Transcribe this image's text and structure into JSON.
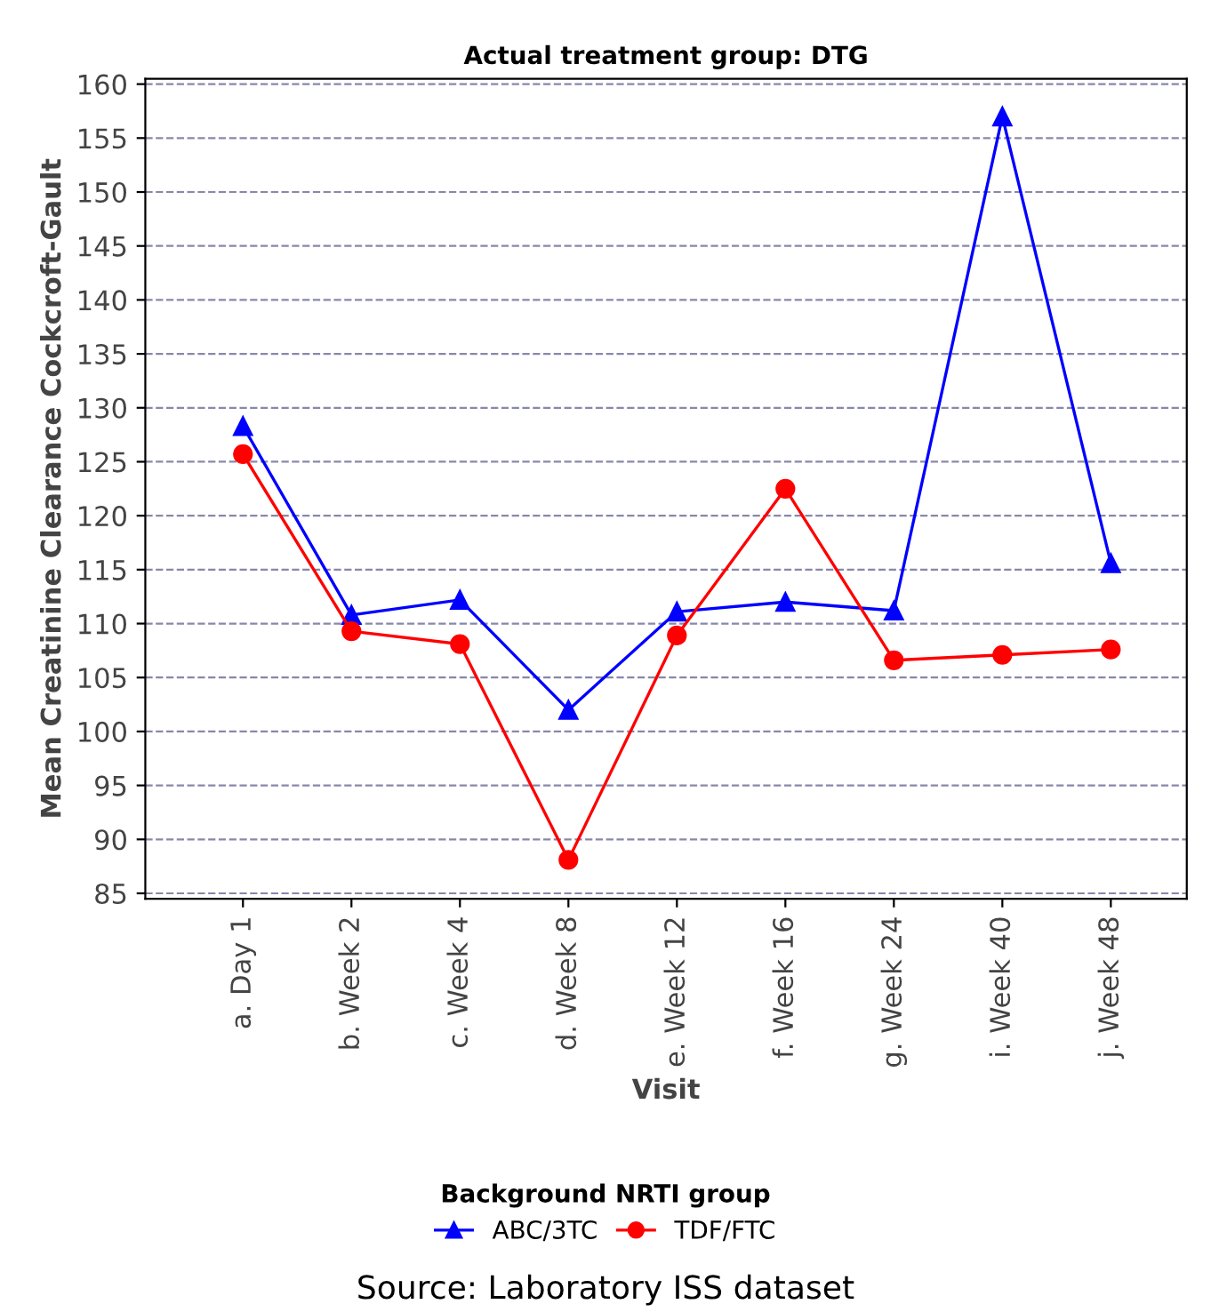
{
  "chart_data": {
    "type": "line",
    "title": "Actual treatment group: DTG",
    "xlabel": "Visit",
    "ylabel": "Mean Creatinine Clearance Cockcroft-Gault",
    "legend_title": "Background NRTI group",
    "categories": [
      "a. Day 1",
      "b. Week 2",
      "c. Week 4",
      "d. Week 8",
      "e. Week 12",
      "f. Week 16",
      "g. Week 24",
      "i. Week 40",
      "j. Week 48"
    ],
    "series": [
      {
        "name": "ABC/3TC",
        "color": "#0000ff",
        "marker": "triangle",
        "values": [
          128.3,
          110.8,
          112.2,
          102.0,
          111.1,
          112.0,
          111.2,
          157.0,
          115.6
        ]
      },
      {
        "name": "TDF/FTC",
        "color": "#ff0000",
        "marker": "circle",
        "values": [
          125.7,
          109.3,
          108.1,
          88.1,
          108.9,
          122.5,
          106.6,
          107.1,
          107.6
        ]
      }
    ],
    "ylim": [
      84.5,
      160.5
    ],
    "yticks": [
      85,
      90,
      95,
      100,
      105,
      110,
      115,
      120,
      125,
      130,
      135,
      140,
      145,
      150,
      155,
      160
    ],
    "grid": "y",
    "legend": "bottom",
    "line_style": "solid",
    "annotations": [
      "Source: Laboratory ISS dataset"
    ]
  }
}
